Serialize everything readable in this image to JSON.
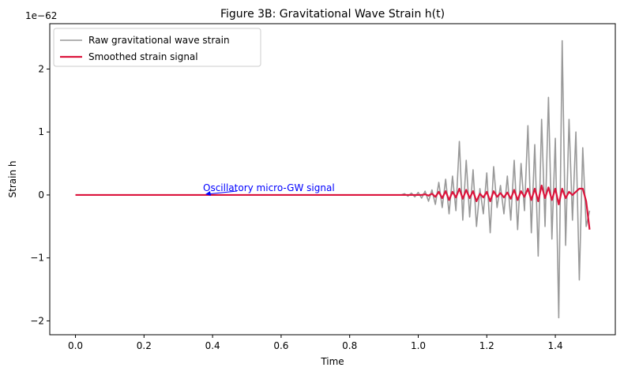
{
  "chart_data": {
    "type": "line",
    "title": "Figure 3B: Gravitational Wave Strain h(t)",
    "x_label": "Time",
    "y_label": "Strain h",
    "y_offset_label": "1e−62",
    "annotation": "Oscillatory micro-GW signal",
    "x": [
      0,
      0.1,
      0.2,
      0.3,
      0.4,
      0.5,
      0.6,
      0.7,
      0.8,
      0.9,
      0.95,
      0.96,
      0.97,
      0.98,
      0.99,
      1.0,
      1.01,
      1.02,
      1.03,
      1.04,
      1.05,
      1.06,
      1.07,
      1.08,
      1.09,
      1.1,
      1.11,
      1.12,
      1.13,
      1.14,
      1.15,
      1.16,
      1.17,
      1.18,
      1.19,
      1.2,
      1.21,
      1.22,
      1.23,
      1.24,
      1.25,
      1.26,
      1.27,
      1.28,
      1.29,
      1.3,
      1.31,
      1.32,
      1.33,
      1.34,
      1.35,
      1.36,
      1.37,
      1.38,
      1.39,
      1.4,
      1.41,
      1.42,
      1.43,
      1.44,
      1.45,
      1.46,
      1.47,
      1.48,
      1.49,
      1.5
    ],
    "series": [
      {
        "name": "Raw gravitational wave strain",
        "color": "#999999",
        "values": [
          0,
          0,
          0,
          0,
          0,
          0,
          0,
          0,
          0,
          0,
          0,
          0.02,
          -0.02,
          0.03,
          -0.03,
          0.04,
          -0.05,
          0.06,
          -0.1,
          0.08,
          -0.15,
          0.2,
          -0.2,
          0.25,
          -0.3,
          0.3,
          -0.25,
          0.85,
          -0.4,
          0.55,
          -0.35,
          0.4,
          -0.5,
          0.1,
          -0.3,
          0.35,
          -0.6,
          0.45,
          -0.2,
          0.15,
          -0.3,
          0.3,
          -0.4,
          0.55,
          -0.55,
          0.5,
          -0.25,
          1.1,
          -0.6,
          0.8,
          -0.97,
          1.2,
          -0.5,
          1.55,
          -0.7,
          0.9,
          -1.95,
          2.45,
          -0.8,
          1.2,
          -0.4,
          1.0,
          -1.35,
          0.75,
          -0.5,
          -0.25
        ]
      },
      {
        "name": "Smoothed strain signal",
        "color": "#dc143c",
        "values": [
          0,
          0,
          0,
          0,
          0,
          0,
          0,
          0,
          0,
          0,
          0,
          0,
          0,
          0,
          0,
          0,
          0,
          0.01,
          -0.01,
          0.02,
          -0.03,
          0.05,
          -0.05,
          0.06,
          -0.08,
          0.05,
          -0.04,
          0.1,
          -0.06,
          0.08,
          -0.05,
          0.06,
          -0.1,
          0.02,
          -0.04,
          0.05,
          -0.1,
          0.06,
          -0.03,
          0.03,
          -0.04,
          0.04,
          -0.06,
          0.08,
          -0.08,
          0.06,
          -0.03,
          0.1,
          -0.08,
          0.1,
          -0.1,
          0.15,
          -0.05,
          0.12,
          -0.08,
          0.1,
          -0.15,
          0.1,
          -0.05,
          0.05,
          0,
          0.05,
          0.1,
          0.1,
          -0.1,
          -0.55
        ]
      }
    ],
    "xlim": [
      -0.075,
      1.575
    ],
    "ylim": [
      -2.22,
      2.72
    ],
    "xticks": [
      {
        "value": 0,
        "label": "0.0"
      },
      0.2,
      0.4,
      0.6,
      0.8,
      {
        "value": 1,
        "label": "1.0"
      },
      1.2,
      1.4
    ],
    "yticks": [
      {
        "value": -2,
        "label": "−2"
      },
      {
        "value": -1,
        "label": "−1"
      },
      0,
      1,
      2
    ],
    "legend": "upper left"
  }
}
